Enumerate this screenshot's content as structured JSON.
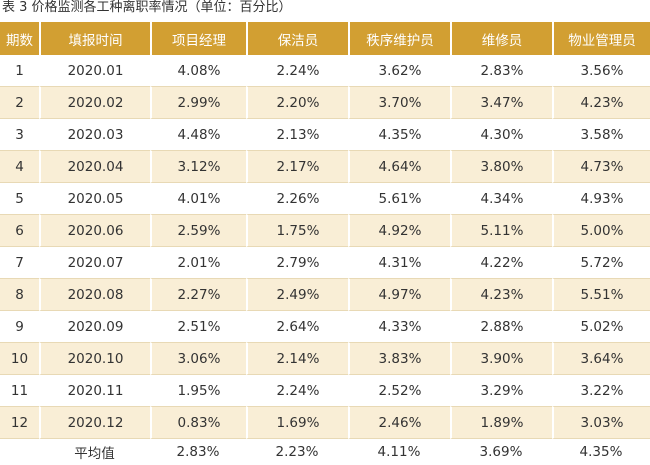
{
  "caption": "表 3   价格监测各工种离职率情况（单位：百分比）",
  "table": {
    "headers": [
      "期数",
      "填报时间",
      "项目经理",
      "保洁员",
      "秩序维护员",
      "维修员",
      "物业管理员"
    ],
    "rows": [
      [
        "1",
        "2020.01",
        "4.08%",
        "2.24%",
        "3.62%",
        "2.83%",
        "3.56%"
      ],
      [
        "2",
        "2020.02",
        "2.99%",
        "2.20%",
        "3.70%",
        "3.47%",
        "4.23%"
      ],
      [
        "3",
        "2020.03",
        "4.48%",
        "2.13%",
        "4.35%",
        "4.30%",
        "3.58%"
      ],
      [
        "4",
        "2020.04",
        "3.12%",
        "2.17%",
        "4.64%",
        "3.80%",
        "4.73%"
      ],
      [
        "5",
        "2020.05",
        "4.01%",
        "2.26%",
        "5.61%",
        "4.34%",
        "4.93%"
      ],
      [
        "6",
        "2020.06",
        "2.59%",
        "1.75%",
        "4.92%",
        "5.11%",
        "5.00%"
      ],
      [
        "7",
        "2020.07",
        "2.01%",
        "2.79%",
        "4.31%",
        "4.22%",
        "5.72%"
      ],
      [
        "8",
        "2020.08",
        "2.27%",
        "2.49%",
        "4.97%",
        "4.23%",
        "5.51%"
      ],
      [
        "9",
        "2020.09",
        "2.51%",
        "2.64%",
        "4.33%",
        "2.88%",
        "5.02%"
      ],
      [
        "10",
        "2020.10",
        "3.06%",
        "2.14%",
        "3.83%",
        "3.90%",
        "3.64%"
      ],
      [
        "11",
        "2020.11",
        "1.95%",
        "2.24%",
        "2.52%",
        "3.29%",
        "3.22%"
      ],
      [
        "12",
        "2020.12",
        "0.83%",
        "1.69%",
        "2.46%",
        "1.89%",
        "3.03%"
      ]
    ],
    "average": {
      "label": "平均值",
      "values": [
        "2.83%",
        "2.23%",
        "4.11%",
        "3.69%",
        "4.35%"
      ]
    }
  },
  "colors": {
    "header_bg": "#d29f32",
    "header_text": "#ffffff",
    "stripe_bg": "#f9eed6",
    "text": "#333333"
  }
}
